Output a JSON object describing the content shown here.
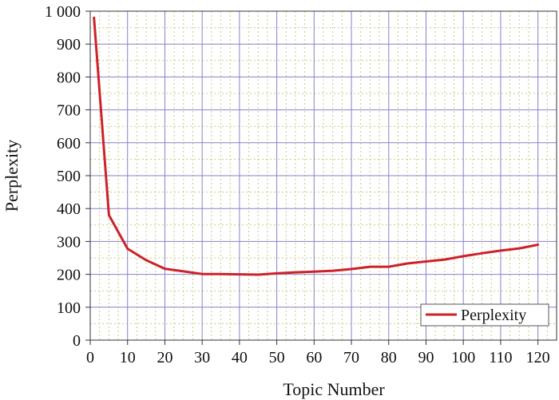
{
  "chart_data": {
    "type": "line",
    "xlabel": "Topic Number",
    "ylabel": "Perplexity",
    "xlim": [
      0,
      125
    ],
    "ylim": [
      0,
      1000
    ],
    "x_ticks": [
      0,
      10,
      20,
      30,
      40,
      50,
      60,
      70,
      80,
      90,
      100,
      110,
      120
    ],
    "x_tick_labels": [
      "0",
      "10",
      "20",
      "30",
      "40",
      "50",
      "60",
      "70",
      "80",
      "90",
      "100",
      "110",
      "120"
    ],
    "y_ticks": [
      0,
      100,
      200,
      300,
      400,
      500,
      600,
      700,
      800,
      900,
      1000
    ],
    "y_tick_labels": [
      "0",
      "100",
      "200",
      "300",
      "400",
      "500",
      "600",
      "700",
      "800",
      "900",
      "1 000"
    ],
    "grid": true,
    "legend_position": "bottom-right",
    "series": [
      {
        "name": "Perplexity",
        "color": "#cc2229",
        "x": [
          1,
          5,
          10,
          15,
          20,
          25,
          30,
          35,
          40,
          45,
          50,
          55,
          60,
          65,
          70,
          75,
          80,
          85,
          90,
          95,
          100,
          105,
          110,
          115,
          120
        ],
        "y": [
          980,
          380,
          278,
          243,
          217,
          209,
          201,
          201,
          200,
          199,
          203,
          206,
          208,
          211,
          216,
          223,
          223,
          233,
          239,
          245,
          255,
          264,
          272,
          279,
          290
        ]
      }
    ]
  }
}
